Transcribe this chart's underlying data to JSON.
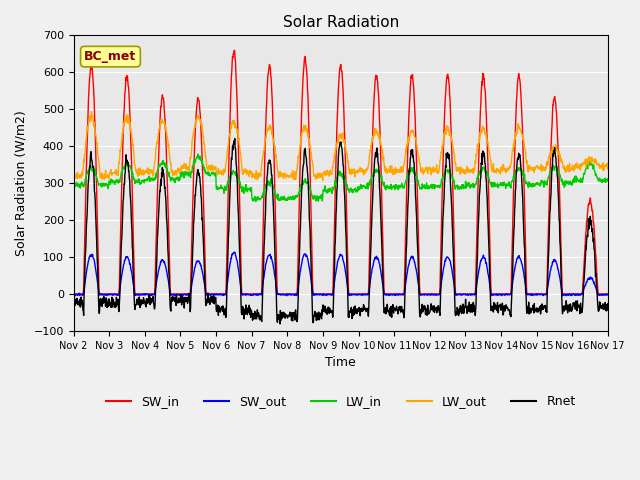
{
  "title": "Solar Radiation",
  "ylabel": "Solar Radiation (W/m2)",
  "xlabel": "Time",
  "ylim": [
    -100,
    700
  ],
  "yticks": [
    -100,
    0,
    100,
    200,
    300,
    400,
    500,
    600,
    700
  ],
  "x_tick_labels": [
    "Nov 2",
    "Nov 3",
    "Nov 4",
    "Nov 5",
    "Nov 6",
    "Nov 7",
    "Nov 8",
    "Nov 9",
    "Nov 10",
    "Nov 11",
    "Nov 12",
    "Nov 13",
    "Nov 14",
    "Nov 15",
    "Nov 16",
    "Nov 17"
  ],
  "annotation": "BC_met",
  "annotation_color": "#8B0000",
  "annotation_bg": "#FFFF99",
  "colors": {
    "SW_in": "#FF0000",
    "SW_out": "#0000FF",
    "LW_in": "#00CC00",
    "LW_out": "#FFA500",
    "Rnet": "#000000"
  },
  "legend_entries": [
    "SW_in",
    "SW_out",
    "LW_in",
    "LW_out",
    "Rnet"
  ],
  "bg_color": "#E8E8E8",
  "grid_color": "#FFFFFF",
  "num_days": 15,
  "pts_per_day": 96,
  "sw_in_peaks": [
    620,
    590,
    535,
    530,
    660,
    620,
    635,
    620,
    590,
    590,
    590,
    590,
    590,
    530,
    250
  ],
  "lw_in_base": [
    295,
    305,
    310,
    325,
    285,
    258,
    260,
    280,
    290,
    290,
    290,
    295,
    295,
    300,
    308
  ],
  "lw_out_base": [
    320,
    330,
    330,
    340,
    330,
    320,
    320,
    330,
    335,
    335,
    335,
    335,
    338,
    340,
    345
  ],
  "lw_out_peak_extra": [
    160,
    150,
    140,
    140,
    135,
    130,
    130,
    100,
    105,
    105,
    110,
    110,
    110,
    55,
    20
  ]
}
